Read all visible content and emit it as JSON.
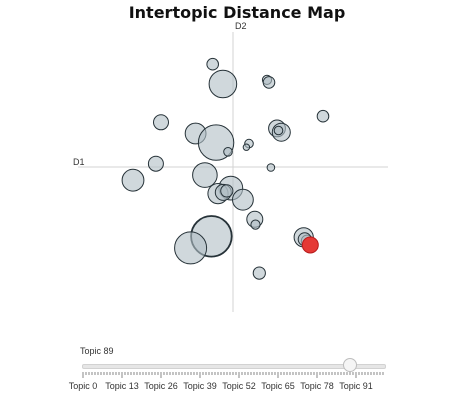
{
  "chart_data": {
    "type": "scatter",
    "title": "Intertopic Distance Map",
    "xaxis_label": "D1",
    "yaxis_label": "D2",
    "grid": false,
    "bubble_fill": "#b0bec5",
    "bubble_stroke": "#263238",
    "highlight_color": "#e53935",
    "highlight_index": 31,
    "topics": [
      {
        "x": -1.45,
        "y": 6.23,
        "size": 0.4
      },
      {
        "x": -0.72,
        "y": 5.03,
        "size": 0.95
      },
      {
        "x": 2.43,
        "y": 5.28,
        "size": 0.32
      },
      {
        "x": 2.57,
        "y": 5.13,
        "size": 0.4
      },
      {
        "x": 6.43,
        "y": 3.08,
        "size": 0.4
      },
      {
        "x": -5.14,
        "y": 2.71,
        "size": 0.52
      },
      {
        "x": -2.67,
        "y": 2.03,
        "size": 0.72
      },
      {
        "x": -1.21,
        "y": 1.48,
        "size": 1.22
      },
      {
        "x": -0.36,
        "y": 0.92,
        "size": 0.3
      },
      {
        "x": 1.14,
        "y": 1.42,
        "size": 0.3
      },
      {
        "x": 3.14,
        "y": 2.34,
        "size": 0.58
      },
      {
        "x": 3.45,
        "y": 2.11,
        "size": 0.62
      },
      {
        "x": 3.25,
        "y": 2.21,
        "size": 0.3
      },
      {
        "x": -5.51,
        "y": 0.2,
        "size": 0.52
      },
      {
        "x": 2.71,
        "y": -0.03,
        "size": 0.26
      },
      {
        "x": -2.01,
        "y": -0.49,
        "size": 0.85
      },
      {
        "x": -7.14,
        "y": -0.8,
        "size": 0.75
      },
      {
        "x": -0.16,
        "y": -1.28,
        "size": 0.82
      },
      {
        "x": -1.07,
        "y": -1.61,
        "size": 0.7
      },
      {
        "x": -0.69,
        "y": -1.54,
        "size": 0.55
      },
      {
        "x": -0.44,
        "y": -1.45,
        "size": 0.42
      },
      {
        "x": 0.71,
        "y": -1.98,
        "size": 0.72
      },
      {
        "x": 1.56,
        "y": -3.17,
        "size": 0.55
      },
      {
        "x": 1.61,
        "y": -3.49,
        "size": 0.32
      },
      {
        "x": -1.54,
        "y": -4.2,
        "size": 1.4
      },
      {
        "x": -3.03,
        "y": -4.9,
        "size": 1.1
      },
      {
        "x": 5.05,
        "y": -4.26,
        "size": 0.66
      },
      {
        "x": 5.29,
        "y": -4.48,
        "size": 0.4
      },
      {
        "x": 5.12,
        "y": -4.38,
        "size": 0.45
      },
      {
        "x": 1.88,
        "y": -6.43,
        "size": 0.42
      },
      {
        "x": 0.96,
        "y": 1.2,
        "size": 0.22
      },
      {
        "x": 5.52,
        "y": -4.73,
        "size": 0.55
      }
    ]
  },
  "slider": {
    "caption": "Topic 89",
    "current_value": 89,
    "min": 0,
    "max": 100,
    "tick_labels": [
      "Topic 0",
      "Topic 13",
      "Topic 26",
      "Topic 39",
      "Topic 52",
      "Topic 65",
      "Topic 78",
      "Topic 91"
    ],
    "tick_values": [
      0,
      13,
      26,
      39,
      52,
      65,
      78,
      91
    ]
  }
}
